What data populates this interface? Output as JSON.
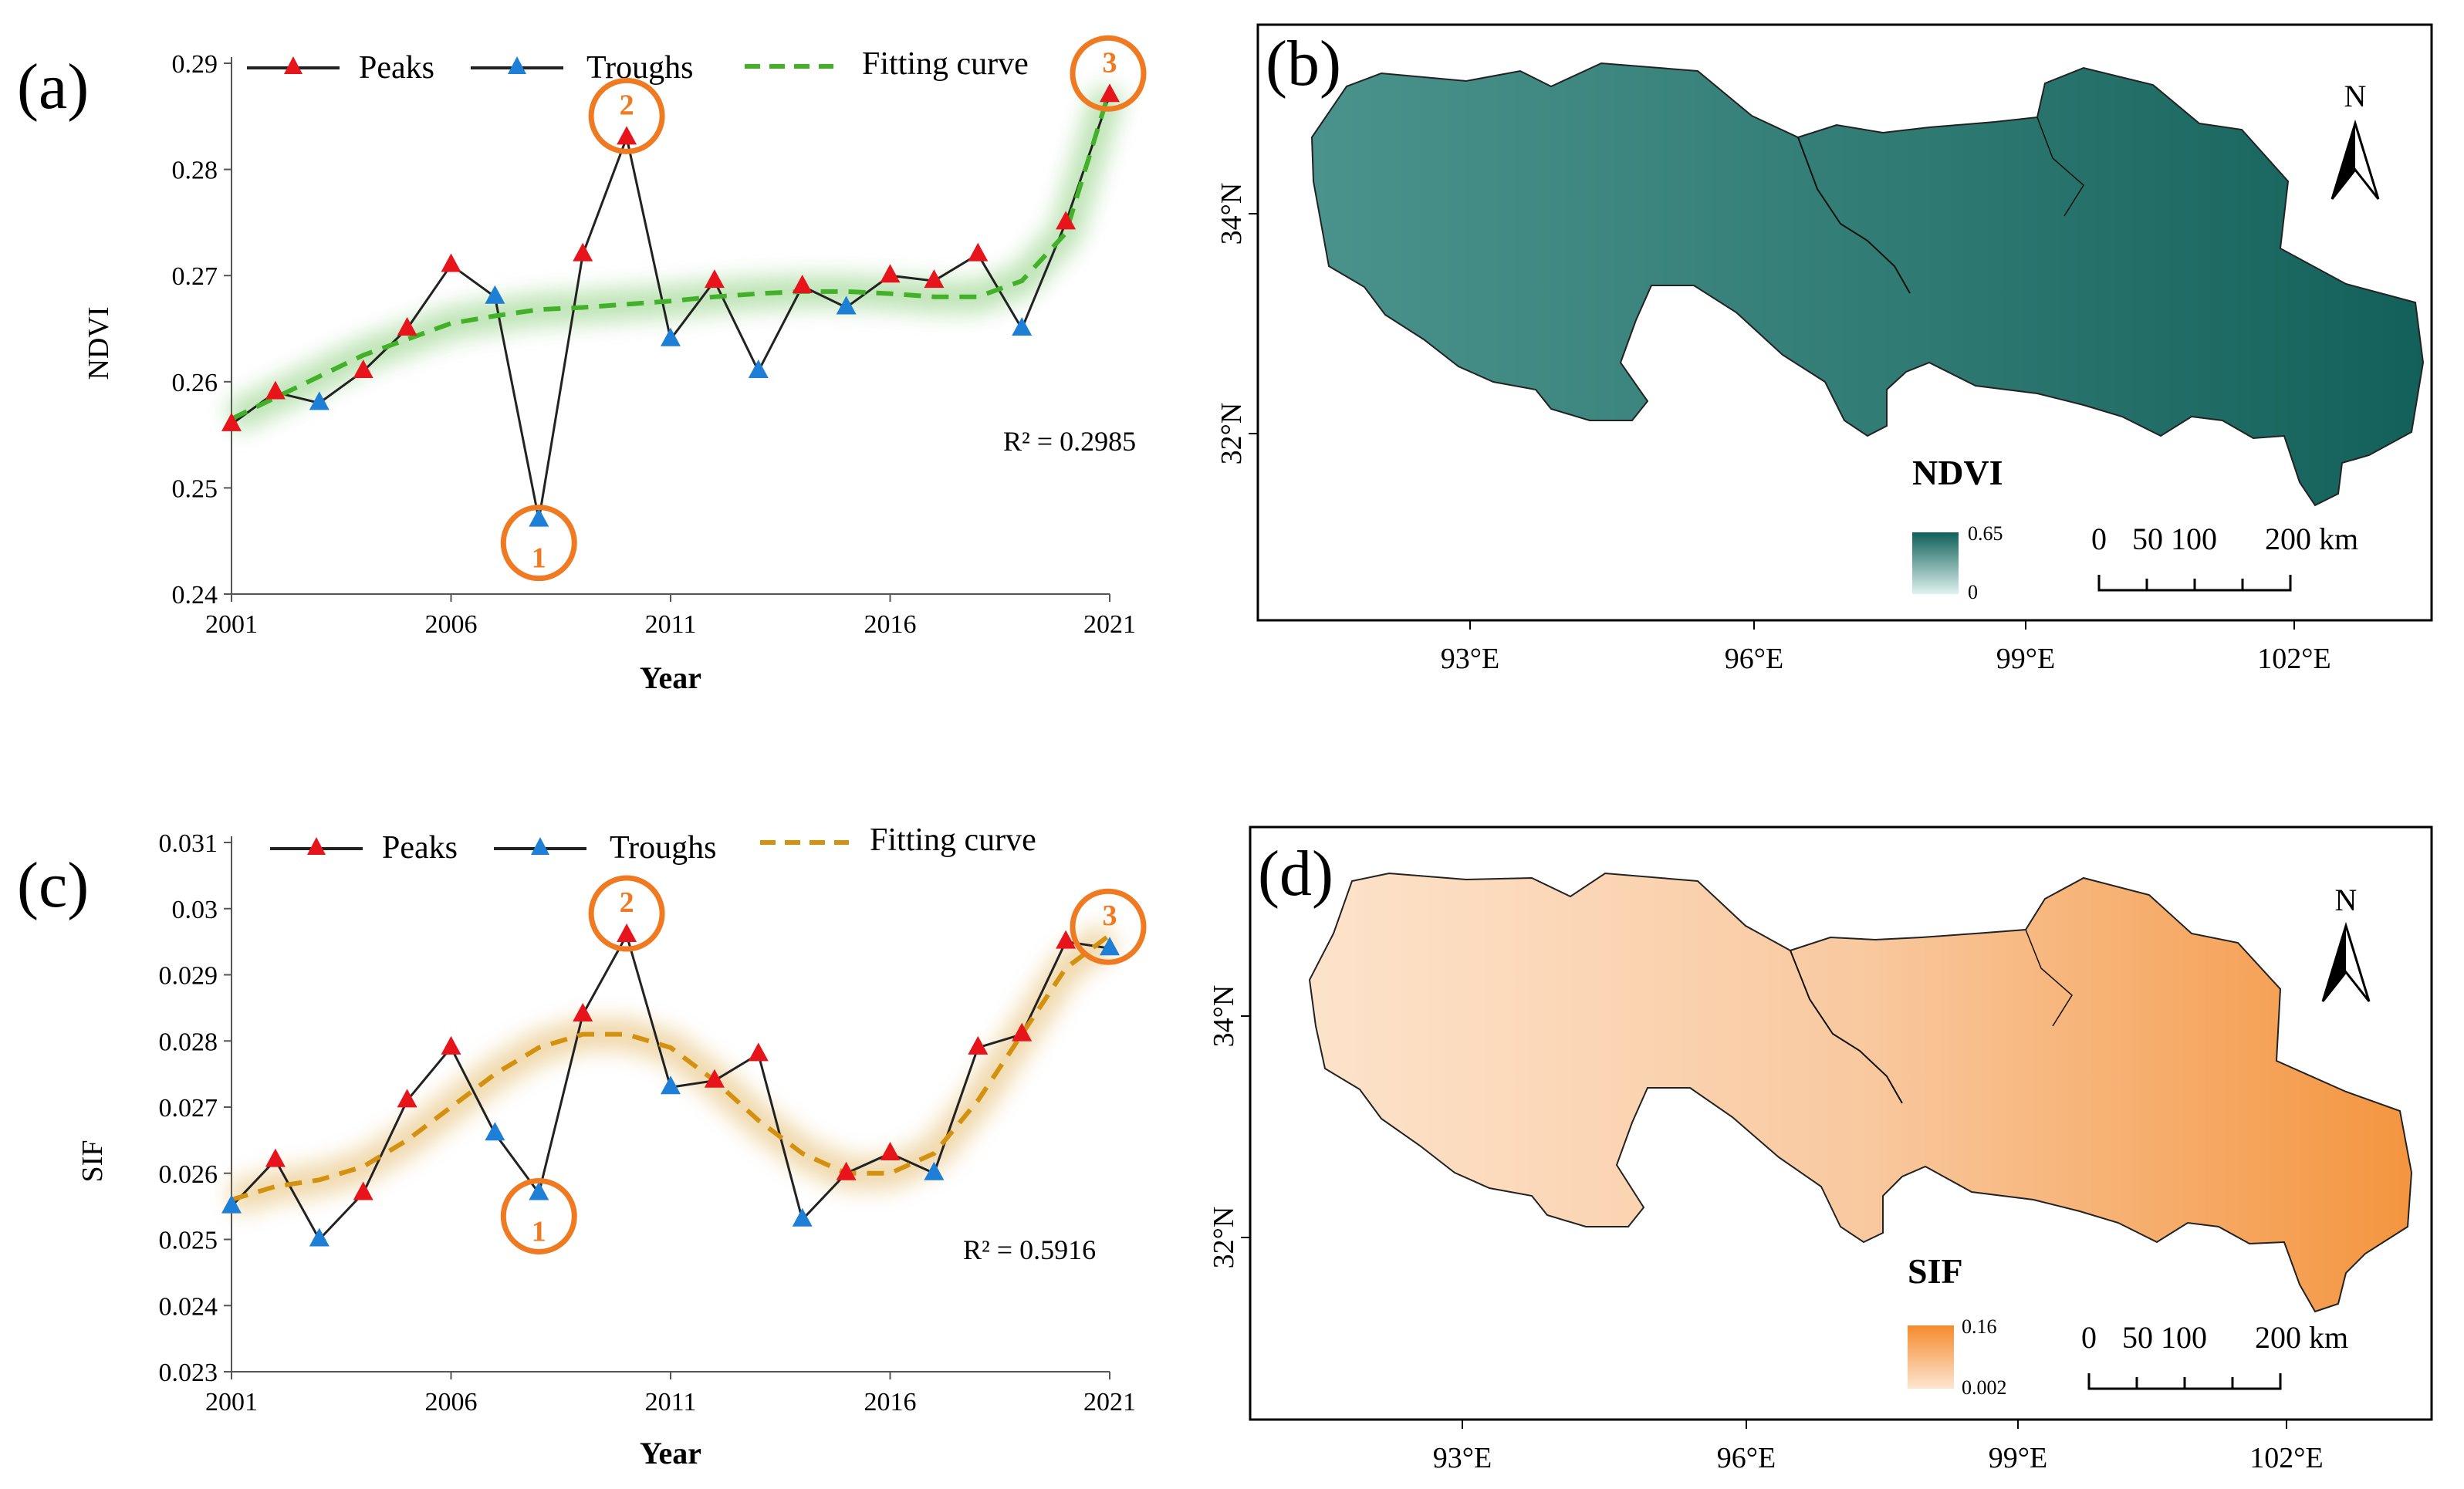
{
  "panels": {
    "a": {
      "letter": "(a)",
      "ylabel": "NDVI",
      "xlabel": "Year",
      "r2": "R² = 0.2985"
    },
    "b": {
      "letter": "(b)",
      "legend_title": "NDVI",
      "legend_max": "0.65",
      "legend_min": "0",
      "ramp_high": "#0f5f59",
      "ramp_low": "#dff2ef",
      "fill": "#3f8b84"
    },
    "c": {
      "letter": "(c)",
      "ylabel": "SIF",
      "xlabel": "Year",
      "r2": "R² = 0.5916"
    },
    "d": {
      "letter": "(d)",
      "legend_title": "SIF",
      "legend_max": "0.16",
      "legend_min": "0.002",
      "ramp_high": "#f58a2e",
      "ramp_low": "#fde6d0",
      "fill": "#f7b987"
    }
  },
  "legend": {
    "peaks": "Peaks",
    "troughs": "Troughs",
    "fitting": "Fitting curve"
  },
  "map_common": {
    "north": "N",
    "x_ticks": [
      "93°E",
      "96°E",
      "99°E",
      "102°E"
    ],
    "y_ticks": [
      "34°N",
      "32°N"
    ],
    "scale_labels": [
      "0",
      "50",
      "100",
      "200 km"
    ]
  },
  "colors": {
    "peak": "#e8141c",
    "trough": "#1e7fd6",
    "highlight": "#f07a22",
    "ndvi_fit": "#43b02a",
    "sif_fit": "#d4900f"
  },
  "chart_data": [
    {
      "type": "line",
      "title": "",
      "xlabel": "Year",
      "ylabel": "NDVI",
      "x": [
        2001,
        2002,
        2003,
        2004,
        2005,
        2006,
        2007,
        2008,
        2009,
        2010,
        2011,
        2012,
        2013,
        2014,
        2015,
        2016,
        2017,
        2018,
        2019,
        2020,
        2021
      ],
      "xlim": [
        2001,
        2021
      ],
      "ylim": [
        0.24,
        0.29
      ],
      "x_ticks": [
        "2001",
        "2006",
        "2011",
        "2016",
        "2021"
      ],
      "y_ticks": [
        "0.24",
        "0.25",
        "0.26",
        "0.27",
        "0.28",
        "0.29"
      ],
      "series": [
        {
          "name": "Peaks",
          "values": [
            0.256,
            0.259,
            0.258,
            0.261,
            0.265,
            0.271,
            0.268,
            0.247,
            0.272,
            0.283,
            0.264,
            0.2695,
            0.261,
            0.269,
            0.267,
            0.27,
            0.2695,
            0.272,
            0.265,
            0.275,
            0.287
          ],
          "kind": [
            "p",
            "p",
            "t",
            "p",
            "p",
            "p",
            "t",
            "t",
            "p",
            "p",
            "t",
            "p",
            "t",
            "p",
            "t",
            "p",
            "p",
            "p",
            "t",
            "p",
            "p"
          ]
        },
        {
          "name": "Fitting curve",
          "values": [
            0.2565,
            0.2585,
            0.2605,
            0.2625,
            0.264,
            0.2655,
            0.2662,
            0.2668,
            0.267,
            0.2673,
            0.2676,
            0.268,
            0.2683,
            0.2685,
            0.2685,
            0.2683,
            0.268,
            0.268,
            0.2695,
            0.274,
            0.2875
          ]
        }
      ],
      "annotations": [
        {
          "label": "1",
          "x": 2008,
          "y": 0.247
        },
        {
          "label": "2",
          "x": 2010,
          "y": 0.283
        },
        {
          "label": "3",
          "x": 2021,
          "y": 0.287
        }
      ],
      "r2_text": "R² = 0.2985",
      "legend_position": "top",
      "grid": false
    },
    {
      "type": "line",
      "title": "",
      "xlabel": "Year",
      "ylabel": "SIF",
      "x": [
        2001,
        2002,
        2003,
        2004,
        2005,
        2006,
        2007,
        2008,
        2009,
        2010,
        2011,
        2012,
        2013,
        2014,
        2015,
        2016,
        2017,
        2018,
        2019,
        2020,
        2021
      ],
      "xlim": [
        2001,
        2021
      ],
      "ylim": [
        0.023,
        0.031
      ],
      "x_ticks": [
        "2001",
        "2006",
        "2011",
        "2016",
        "2021"
      ],
      "y_ticks": [
        "0.023",
        "0.024",
        "0.025",
        "0.026",
        "0.027",
        "0.028",
        "0.029",
        "0.03",
        "0.031"
      ],
      "series": [
        {
          "name": "Peaks",
          "values": [
            0.0255,
            0.0262,
            0.025,
            0.0257,
            0.0271,
            0.0279,
            0.0266,
            0.0257,
            0.0284,
            0.0296,
            0.0273,
            0.0274,
            0.0278,
            0.0253,
            0.026,
            0.0263,
            0.026,
            0.0279,
            0.0281,
            0.0295,
            0.0294
          ],
          "kind": [
            "t",
            "p",
            "t",
            "p",
            "p",
            "p",
            "t",
            "t",
            "p",
            "p",
            "t",
            "p",
            "p",
            "t",
            "p",
            "p",
            "t",
            "p",
            "p",
            "p",
            "t"
          ]
        },
        {
          "name": "Fitting curve",
          "values": [
            0.0256,
            0.0258,
            0.0259,
            0.0261,
            0.0265,
            0.027,
            0.0275,
            0.0279,
            0.0281,
            0.0281,
            0.0279,
            0.0274,
            0.0268,
            0.0263,
            0.026,
            0.026,
            0.0263,
            0.0271,
            0.0281,
            0.0291,
            0.0296
          ]
        }
      ],
      "annotations": [
        {
          "label": "1",
          "x": 2008,
          "y": 0.0257
        },
        {
          "label": "2",
          "x": 2010,
          "y": 0.0296
        },
        {
          "label": "3",
          "x": 2021,
          "y": 0.0294
        }
      ],
      "r2_text": "R² = 0.5916",
      "legend_position": "top",
      "grid": false
    }
  ]
}
